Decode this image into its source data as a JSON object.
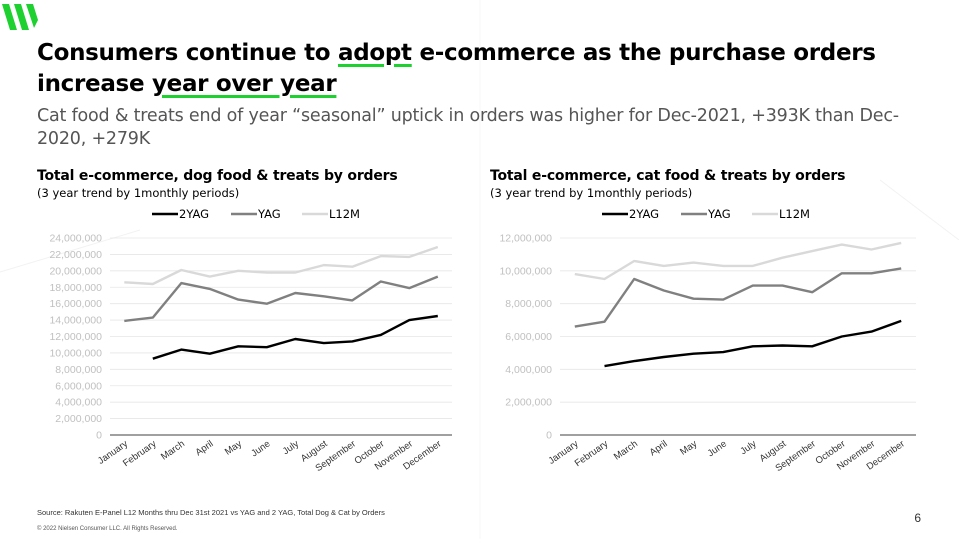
{
  "slide": {
    "headline_part1": "Consumers continue to ",
    "headline_hl1": "adopt",
    "headline_part2": " e-commerce as the purchase orders increase ",
    "headline_hl2": "year over year",
    "subtitle": "Cat food & treats end of year “seasonal” uptick in orders was higher for Dec-2021, +393K than Dec-2020, +279K",
    "source": "Source: Rakuten E-Panel L12 Months thru Dec 31st 2021 vs YAG and 2 YAG, Total Dog & Cat by Orders",
    "copyright": "© 2022 Nielsen Consumer LLC. All Rights Reserved.",
    "page_number": "6"
  },
  "colors": {
    "accent": "#1ed130",
    "series_2yag": "#000000",
    "series_yag": "#808080",
    "series_l12m": "#d9d9d9"
  },
  "chart_data": [
    {
      "type": "line",
      "title": "Total e-commerce, dog food & treats by orders",
      "subtitle": "(3 year trend by 1monthly periods)",
      "categories": [
        "January",
        "February",
        "March",
        "April",
        "May",
        "June",
        "July",
        "August",
        "September",
        "October",
        "November",
        "December"
      ],
      "ylim": [
        0,
        24000000
      ],
      "yticks": [
        "0",
        "2,000,000",
        "4,000,000",
        "6,000,000",
        "8,000,000",
        "10,000,000",
        "12,000,000",
        "14,000,000",
        "16,000,000",
        "18,000,000",
        "20,000,000",
        "22,000,000",
        "24,000,000"
      ],
      "legend_position": "top",
      "series": [
        {
          "name": "2YAG",
          "color": "#000000",
          "values": [
            null,
            9300000,
            10400000,
            9900000,
            10800000,
            10700000,
            11700000,
            11200000,
            11400000,
            12200000,
            14000000,
            14500000
          ]
        },
        {
          "name": "YAG",
          "color": "#808080",
          "values": [
            13900000,
            14300000,
            18500000,
            17800000,
            16500000,
            16000000,
            17300000,
            16900000,
            16400000,
            18700000,
            17900000,
            19300000
          ]
        },
        {
          "name": "L12M",
          "color": "#d9d9d9",
          "values": [
            18600000,
            18400000,
            20100000,
            19300000,
            20000000,
            19800000,
            19800000,
            20700000,
            20500000,
            21800000,
            21700000,
            22900000
          ]
        }
      ]
    },
    {
      "type": "line",
      "title": "Total e-commerce, cat food & treats by orders",
      "subtitle": "(3 year trend by 1monthly periods)",
      "categories": [
        "January",
        "February",
        "March",
        "April",
        "May",
        "June",
        "July",
        "August",
        "September",
        "October",
        "November",
        "December"
      ],
      "ylim": [
        0,
        12000000
      ],
      "yticks": [
        "0",
        "2,000,000",
        "4,000,000",
        "6,000,000",
        "8,000,000",
        "10,000,000",
        "12,000,000"
      ],
      "legend_position": "top",
      "series": [
        {
          "name": "2YAG",
          "color": "#000000",
          "values": [
            null,
            4200000,
            4500000,
            4750000,
            4950000,
            5050000,
            5400000,
            5450000,
            5400000,
            6000000,
            6300000,
            6950000
          ]
        },
        {
          "name": "YAG",
          "color": "#808080",
          "values": [
            6600000,
            6900000,
            9500000,
            8800000,
            8300000,
            8250000,
            9100000,
            9100000,
            8700000,
            9850000,
            9850000,
            10150000
          ]
        },
        {
          "name": "L12M",
          "color": "#d9d9d9",
          "values": [
            9800000,
            9500000,
            10600000,
            10300000,
            10500000,
            10300000,
            10300000,
            10800000,
            11200000,
            11600000,
            11300000,
            11700000
          ]
        }
      ]
    }
  ]
}
